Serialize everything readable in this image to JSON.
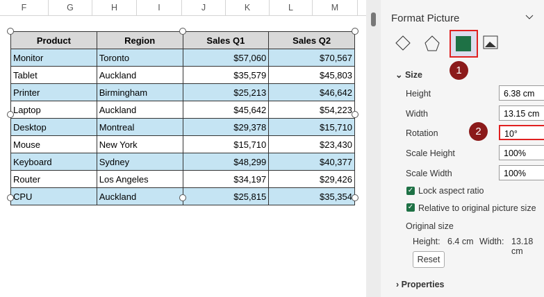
{
  "sheet": {
    "columns": [
      "F",
      "G",
      "H",
      "I",
      "J",
      "K",
      "L",
      "M"
    ]
  },
  "table": {
    "header": [
      "Product",
      "Region",
      "Sales Q1",
      "Sales Q2"
    ],
    "rows": [
      [
        "Monitor",
        "Toronto",
        "$57,060",
        "$70,567"
      ],
      [
        "Tablet",
        "Auckland",
        "$35,579",
        "$45,803"
      ],
      [
        "Printer",
        "Birmingham",
        "$25,213",
        "$46,642"
      ],
      [
        "Laptop",
        "Auckland",
        "$45,642",
        "$54,223"
      ],
      [
        "Desktop",
        "Montreal",
        "$29,378",
        "$15,710"
      ],
      [
        "Mouse",
        "New York",
        "$15,710",
        "$23,430"
      ],
      [
        "Keyboard",
        "Sydney",
        "$48,299",
        "$40,377"
      ],
      [
        "Router",
        "Los Angeles",
        "$34,197",
        "$29,426"
      ],
      [
        "CPU",
        "Auckland",
        "$25,815",
        "$35,354"
      ]
    ]
  },
  "pane": {
    "title": "Format Picture",
    "callouts": [
      "1",
      "2"
    ],
    "size_section": "Size",
    "fields": [
      {
        "label": "Height",
        "value": "6.38 cm"
      },
      {
        "label": "Width",
        "value": "13.15 cm"
      },
      {
        "label": "Rotation",
        "value": "10°"
      },
      {
        "label": "Scale Height",
        "value": "100%"
      },
      {
        "label": "Scale Width",
        "value": "100%"
      }
    ],
    "checkboxes": [
      "Lock aspect ratio",
      "Relative to original picture size"
    ],
    "original_size": {
      "label": "Original size",
      "height_label": "Height:",
      "height": "6.4 cm",
      "width_label": "Width:",
      "width": "13.18 cm"
    },
    "reset": "Reset",
    "properties_section": "Properties"
  }
}
